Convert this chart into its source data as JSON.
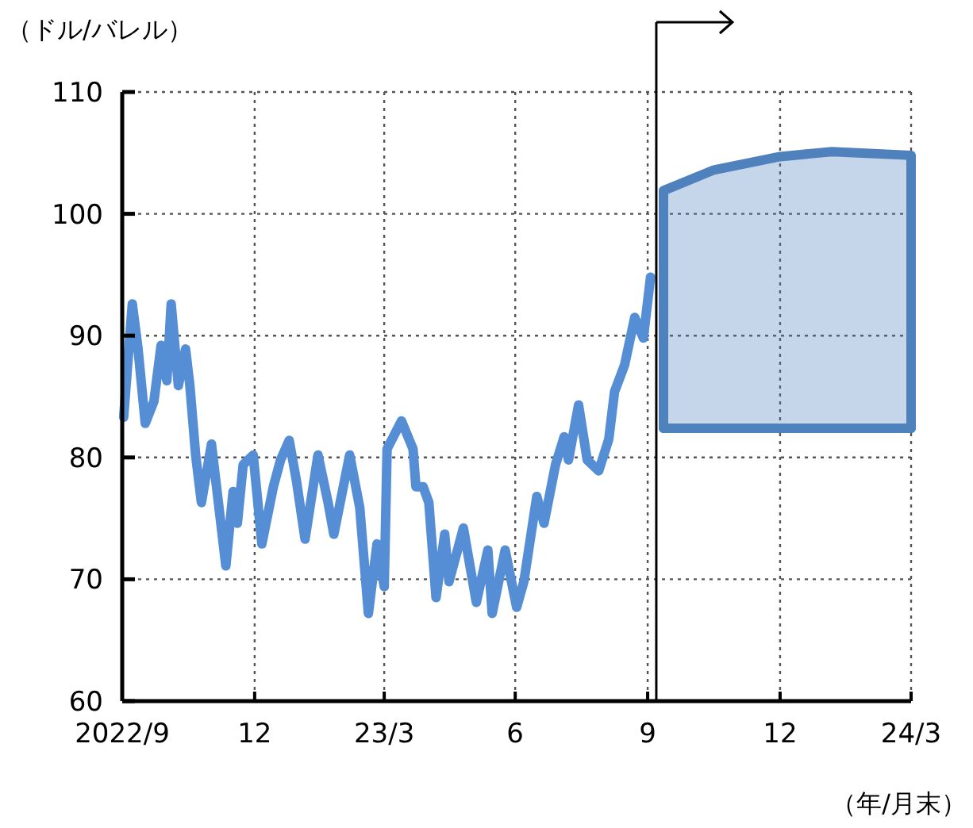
{
  "chart_data": {
    "type": "line",
    "xlabel": "（年/月末）",
    "ylabel": "（ドル/バレル）",
    "xlim": [
      "2022-09-30",
      "2024-03-31"
    ],
    "ylim": [
      60,
      110
    ],
    "xticks": [
      {
        "value": "2022-09-30",
        "label": "2022/9"
      },
      {
        "value": "2022-12-31",
        "label": "12"
      },
      {
        "value": "2023-03-31",
        "label": "23/3"
      },
      {
        "value": "2023-06-30",
        "label": "6"
      },
      {
        "value": "2023-09-30",
        "label": "9"
      },
      {
        "value": "2023-12-31",
        "label": "12"
      },
      {
        "value": "2024-03-31",
        "label": "24/3"
      }
    ],
    "yticks": [
      60,
      70,
      80,
      90,
      100,
      110
    ],
    "grid": true,
    "ref_lines": [
      {
        "axis": "x",
        "value": "2023-10-06",
        "label": null,
        "color": "#000000"
      }
    ],
    "series": [
      {
        "type": "line",
        "color": "#558ed5",
        "x": [
          "2022-10-01",
          "2022-10-07",
          "2022-10-11",
          "2022-10-16",
          "2022-10-22",
          "2022-10-27",
          "2022-10-31",
          "2022-11-03",
          "2022-11-08",
          "2022-11-13",
          "2022-11-16",
          "2022-11-20",
          "2022-11-24",
          "2022-12-01",
          "2022-12-11",
          "2022-12-16",
          "2022-12-19",
          "2022-12-23",
          "2022-12-30",
          "2023-01-05",
          "2023-01-13",
          "2023-01-18",
          "2023-01-24",
          "2023-01-29",
          "2023-02-04",
          "2023-02-13",
          "2023-02-20",
          "2023-02-24",
          "2023-03-07",
          "2023-03-14",
          "2023-03-20",
          "2023-03-26",
          "2023-03-31",
          "2023-04-02",
          "2023-04-12",
          "2023-04-20",
          "2023-04-22",
          "2023-04-27",
          "2023-05-01",
          "2023-05-06",
          "2023-05-12",
          "2023-05-15",
          "2023-05-25",
          "2023-06-03",
          "2023-06-11",
          "2023-06-14",
          "2023-06-23",
          "2023-07-01",
          "2023-07-06",
          "2023-07-15",
          "2023-07-20",
          "2023-07-28",
          "2023-08-03",
          "2023-08-06",
          "2023-08-13",
          "2023-08-19",
          "2023-08-27",
          "2023-09-03",
          "2023-09-07",
          "2023-09-14",
          "2023-09-21",
          "2023-09-27",
          "2023-10-02"
        ],
        "values": [
          83.3,
          92.6,
          88.9,
          82.8,
          84.6,
          89.2,
          86.3,
          92.6,
          85.9,
          88.9,
          85.9,
          80.2,
          76.3,
          81.1,
          71.1,
          77.2,
          74.6,
          79.4,
          80.2,
          72.9,
          77.6,
          79.8,
          81.4,
          78.1,
          73.3,
          80.2,
          76.3,
          73.7,
          80.2,
          75.9,
          67.2,
          72.9,
          69.4,
          80.7,
          83.0,
          80.7,
          77.6,
          77.6,
          76.3,
          68.5,
          73.7,
          69.8,
          74.2,
          68.1,
          72.4,
          67.2,
          72.4,
          67.7,
          69.8,
          76.8,
          74.6,
          79.4,
          81.7,
          79.8,
          84.3,
          79.8,
          78.9,
          81.5,
          85.4,
          87.6,
          91.5,
          89.8,
          94.8
        ]
      },
      {
        "type": "line",
        "color": "#4f81bd",
        "x": [
          "2023-10-11",
          "2023-11-15",
          "2023-12-31",
          "2024-02-05",
          "2024-03-31"
        ],
        "values": [
          82.4,
          82.4,
          82.4,
          82.4,
          82.4
        ]
      },
      {
        "type": "area",
        "color": "#4f81bd",
        "x": [
          "2023-10-11",
          "2023-11-15",
          "2023-12-31",
          "2024-02-05",
          "2024-03-31"
        ],
        "values": [
          101.9,
          103.6,
          104.7,
          105.1,
          104.8
        ]
      }
    ]
  }
}
